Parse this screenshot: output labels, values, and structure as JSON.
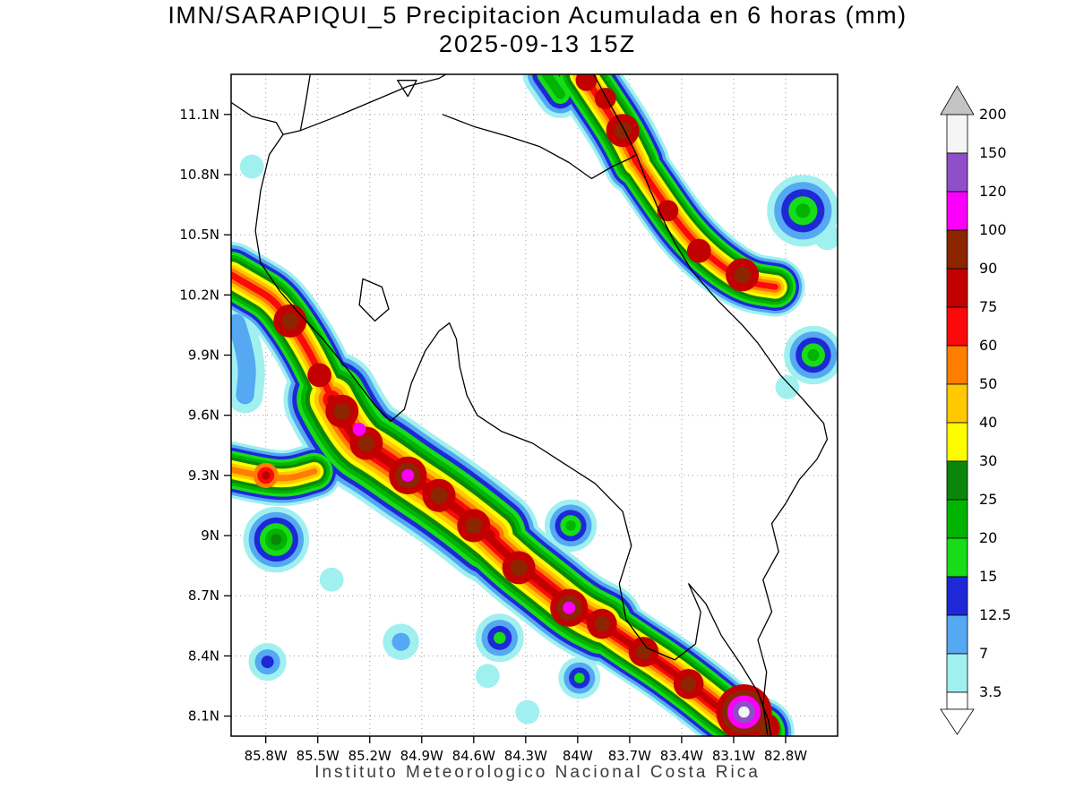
{
  "title": {
    "line1": "IMN/SARAPIQUI_5 Precipitacion Acumulada en 6 horas (mm)",
    "line2": "2025-09-13 15Z"
  },
  "footer": "Instituto Meteorologico Nacional Costa Rica",
  "axes": {
    "lat_ticks": [
      {
        "value": 11.1,
        "label": "11.1N"
      },
      {
        "value": 10.8,
        "label": "10.8N"
      },
      {
        "value": 10.5,
        "label": "10.5N"
      },
      {
        "value": 10.2,
        "label": "10.2N"
      },
      {
        "value": 9.9,
        "label": "9.9N"
      },
      {
        "value": 9.6,
        "label": "9.6N"
      },
      {
        "value": 9.3,
        "label": "9.3N"
      },
      {
        "value": 9.0,
        "label": "9N"
      },
      {
        "value": 8.7,
        "label": "8.7N"
      },
      {
        "value": 8.4,
        "label": "8.4N"
      },
      {
        "value": 8.1,
        "label": "8.1N"
      }
    ],
    "lon_ticks": [
      {
        "value": 85.8,
        "label": "85.8W"
      },
      {
        "value": 85.5,
        "label": "85.5W"
      },
      {
        "value": 85.2,
        "label": "85.2W"
      },
      {
        "value": 84.9,
        "label": "84.9W"
      },
      {
        "value": 84.6,
        "label": "84.6W"
      },
      {
        "value": 84.3,
        "label": "84.3W"
      },
      {
        "value": 84.0,
        "label": "84W"
      },
      {
        "value": 83.7,
        "label": "83.7W"
      },
      {
        "value": 83.4,
        "label": "83.4W"
      },
      {
        "value": 83.1,
        "label": "83.1W"
      },
      {
        "value": 82.8,
        "label": "82.8W"
      }
    ],
    "lon_range_w": [
      86.0,
      82.5
    ],
    "lat_range": [
      11.3,
      8.0
    ],
    "grid_style": "dotted"
  },
  "colorbar": {
    "labels": [
      "200",
      "150",
      "120",
      "100",
      "90",
      "75",
      "60",
      "50",
      "40",
      "30",
      "25",
      "20",
      "15",
      "12.5",
      "7",
      "3.5"
    ],
    "segment_colors": [
      "#f5f5f5",
      "#8f4fc8",
      "#fa00fa",
      "#8c2600",
      "#c30000",
      "#fa0a0a",
      "#ff7d00",
      "#ffc800",
      "#fdfd00",
      "#0a870a",
      "#00b400",
      "#17dc17",
      "#1e28d7",
      "#55a8f2",
      "#a0f0f0",
      "#ffffff"
    ],
    "top_arrow_color": "#c4c4c4",
    "bottom_arrow_color": "#ffffff"
  },
  "chart_data": {
    "type": "heatmap",
    "model": "IMN/SARAPIQUI_5",
    "variable": "Precipitacion Acumulada en 6 horas",
    "units": "mm",
    "valid_time": "2025-09-13 15Z",
    "levels": [
      3.5,
      7,
      12.5,
      15,
      20,
      25,
      30,
      40,
      50,
      60,
      75,
      90,
      100,
      120,
      150
    ],
    "level_colors": [
      "#a0f0f0",
      "#55a8f2",
      "#1e28d7",
      "#17dc17",
      "#00b400",
      "#0a870a",
      "#fdfd00",
      "#ffc800",
      "#ff7d00",
      "#fa0a0a",
      "#c30000",
      "#8c2600",
      "#fa00fa",
      "#8f4fc8",
      "#f5f5f5"
    ],
    "bands": [
      {
        "spine": [
          [
            86.0,
            10.3
          ],
          [
            85.88,
            10.24
          ],
          [
            85.76,
            10.18
          ],
          [
            85.66,
            10.07
          ],
          [
            85.55,
            9.92
          ],
          [
            85.46,
            9.76
          ],
          [
            85.36,
            9.58
          ]
        ],
        "max": 75,
        "width": 0.4
      },
      {
        "spine": [
          [
            85.42,
            9.68
          ],
          [
            85.3,
            9.48
          ],
          [
            85.14,
            9.4
          ],
          [
            84.98,
            9.3
          ],
          [
            84.82,
            9.21
          ],
          [
            84.66,
            9.11
          ],
          [
            84.5,
            9.0
          ]
        ],
        "max": 90,
        "width": 0.58
      },
      {
        "spine": [
          [
            84.56,
            9.03
          ],
          [
            84.38,
            8.88
          ],
          [
            84.2,
            8.76
          ],
          [
            84.0,
            8.62
          ],
          [
            83.86,
            8.56
          ]
        ],
        "max": 90,
        "width": 0.5
      },
      {
        "spine": [
          [
            83.9,
            8.58
          ],
          [
            83.7,
            8.46
          ],
          [
            83.5,
            8.35
          ],
          [
            83.3,
            8.22
          ],
          [
            83.1,
            8.08
          ],
          [
            82.95,
            8.02
          ]
        ],
        "max": 90,
        "width": 0.42
      },
      {
        "spine": [
          [
            86.0,
            9.33
          ],
          [
            85.85,
            9.3
          ],
          [
            85.68,
            9.28
          ],
          [
            85.52,
            9.32
          ]
        ],
        "max": 60,
        "width": 0.34
      },
      {
        "spine": [
          [
            85.97,
            10.06
          ],
          [
            85.9,
            9.88
          ],
          [
            85.92,
            9.7
          ]
        ],
        "max": 12.5,
        "width": 0.26
      },
      {
        "spine": [
          [
            83.97,
            11.3
          ],
          [
            83.86,
            11.16
          ],
          [
            83.74,
            11.0
          ],
          [
            83.66,
            10.86
          ]
        ],
        "max": 75,
        "width": 0.4
      },
      {
        "spine": [
          [
            83.66,
            10.86
          ],
          [
            83.52,
            10.68
          ],
          [
            83.37,
            10.5
          ],
          [
            83.2,
            10.36
          ],
          [
            83.02,
            10.26
          ],
          [
            82.86,
            10.24
          ]
        ],
        "max": 75,
        "width": 0.36
      },
      {
        "spine": [
          [
            84.18,
            11.3
          ],
          [
            84.1,
            11.2
          ]
        ],
        "max": 25,
        "width": 0.3
      }
    ],
    "cells": [
      {
        "lon": 85.66,
        "lat": 10.07,
        "min": 75,
        "max": 100,
        "r": 0.11
      },
      {
        "lon": 85.49,
        "lat": 9.8,
        "min": 75,
        "max": 90,
        "r": 0.09
      },
      {
        "lon": 85.36,
        "lat": 9.62,
        "min": 75,
        "max": 100,
        "r": 0.11
      },
      {
        "lon": 85.22,
        "lat": 9.46,
        "min": 75,
        "max": 100,
        "r": 0.11
      },
      {
        "lon": 85.26,
        "lat": 9.53,
        "min": 100,
        "max": 120,
        "r": 0.05
      },
      {
        "lon": 84.98,
        "lat": 9.3,
        "min": 75,
        "max": 120,
        "r": 0.12
      },
      {
        "lon": 84.8,
        "lat": 9.2,
        "min": 75,
        "max": 100,
        "r": 0.11
      },
      {
        "lon": 84.6,
        "lat": 9.05,
        "min": 75,
        "max": 100,
        "r": 0.11
      },
      {
        "lon": 84.34,
        "lat": 8.84,
        "min": 75,
        "max": 100,
        "r": 0.11
      },
      {
        "lon": 84.05,
        "lat": 8.64,
        "min": 75,
        "max": 120,
        "r": 0.12
      },
      {
        "lon": 83.86,
        "lat": 8.56,
        "min": 75,
        "max": 100,
        "r": 0.1
      },
      {
        "lon": 83.62,
        "lat": 8.42,
        "min": 75,
        "max": 100,
        "r": 0.1
      },
      {
        "lon": 83.36,
        "lat": 8.26,
        "min": 75,
        "max": 100,
        "r": 0.1
      },
      {
        "lon": 83.04,
        "lat": 8.12,
        "min": 75,
        "max": 200,
        "r": 0.17
      },
      {
        "lon": 82.92,
        "lat": 8.04,
        "min": 75,
        "max": 100,
        "r": 0.1
      },
      {
        "lon": 83.74,
        "lat": 11.02,
        "min": 75,
        "max": 100,
        "r": 0.11
      },
      {
        "lon": 83.84,
        "lat": 11.18,
        "min": 75,
        "max": 90,
        "r": 0.08
      },
      {
        "lon": 83.95,
        "lat": 11.27,
        "min": 75,
        "max": 90,
        "r": 0.08
      },
      {
        "lon": 83.48,
        "lat": 10.62,
        "min": 75,
        "max": 90,
        "r": 0.08
      },
      {
        "lon": 83.3,
        "lat": 10.42,
        "min": 75,
        "max": 90,
        "r": 0.09
      },
      {
        "lon": 83.05,
        "lat": 10.3,
        "min": 75,
        "max": 100,
        "r": 0.11
      },
      {
        "lon": 85.8,
        "lat": 9.3,
        "min": 50,
        "max": 90,
        "r": 0.08
      },
      {
        "lon": 82.7,
        "lat": 10.62,
        "min": 3.5,
        "max": 25,
        "r": 0.22
      },
      {
        "lon": 82.56,
        "lat": 10.49,
        "min": 3.5,
        "max": 7,
        "r": 0.1
      },
      {
        "lon": 82.64,
        "lat": 9.9,
        "min": 3.5,
        "max": 25,
        "r": 0.18
      },
      {
        "lon": 82.79,
        "lat": 9.74,
        "min": 3.5,
        "max": 7,
        "r": 0.09
      },
      {
        "lon": 85.74,
        "lat": 8.98,
        "min": 3.5,
        "max": 30,
        "r": 0.2
      },
      {
        "lon": 85.42,
        "lat": 8.78,
        "min": 3.5,
        "max": 7,
        "r": 0.09
      },
      {
        "lon": 85.79,
        "lat": 8.37,
        "min": 3.5,
        "max": 15,
        "r": 0.12
      },
      {
        "lon": 85.02,
        "lat": 8.47,
        "min": 3.5,
        "max": 12.5,
        "r": 0.12
      },
      {
        "lon": 84.45,
        "lat": 8.49,
        "min": 3.5,
        "max": 20,
        "r": 0.15
      },
      {
        "lon": 84.04,
        "lat": 9.05,
        "min": 3.5,
        "max": 25,
        "r": 0.16
      },
      {
        "lon": 83.99,
        "lat": 8.29,
        "min": 3.5,
        "max": 20,
        "r": 0.13
      },
      {
        "lon": 84.29,
        "lat": 8.12,
        "min": 3.5,
        "max": 7,
        "r": 0.09
      },
      {
        "lon": 85.88,
        "lat": 10.84,
        "min": 3.5,
        "max": 7,
        "r": 0.09
      },
      {
        "lon": 84.52,
        "lat": 8.3,
        "min": 3.5,
        "max": 7,
        "r": 0.09
      }
    ],
    "coastlines": [
      {
        "name": "pacific-coast",
        "closed": false,
        "points": [
          [
            86.0,
            11.16
          ],
          [
            85.88,
            11.09
          ],
          [
            85.74,
            11.06
          ],
          [
            85.7,
            11.0
          ],
          [
            85.78,
            10.9
          ],
          [
            85.83,
            10.72
          ],
          [
            85.86,
            10.52
          ],
          [
            85.83,
            10.36
          ],
          [
            85.72,
            10.22
          ],
          [
            85.6,
            10.1
          ],
          [
            85.47,
            9.98
          ],
          [
            85.32,
            9.82
          ],
          [
            85.17,
            9.65
          ],
          [
            85.08,
            9.57
          ],
          [
            85.0,
            9.63
          ],
          [
            84.96,
            9.76
          ],
          [
            84.88,
            9.92
          ],
          [
            84.8,
            10.02
          ],
          [
            84.74,
            10.06
          ],
          [
            84.7,
            9.98
          ],
          [
            84.68,
            9.84
          ],
          [
            84.64,
            9.7
          ],
          [
            84.58,
            9.6
          ],
          [
            84.44,
            9.52
          ],
          [
            84.26,
            9.46
          ],
          [
            84.08,
            9.36
          ],
          [
            83.9,
            9.26
          ],
          [
            83.74,
            9.12
          ],
          [
            83.69,
            8.95
          ],
          [
            83.76,
            8.76
          ],
          [
            83.72,
            8.58
          ],
          [
            83.6,
            8.44
          ],
          [
            83.44,
            8.38
          ],
          [
            83.32,
            8.46
          ],
          [
            83.29,
            8.62
          ],
          [
            83.36,
            8.76
          ],
          [
            83.26,
            8.66
          ],
          [
            83.17,
            8.5
          ],
          [
            83.06,
            8.36
          ],
          [
            82.96,
            8.22
          ],
          [
            82.9,
            8.08
          ],
          [
            82.88,
            7.98
          ]
        ]
      },
      {
        "name": "caribbean-coast-panama-border",
        "closed": false,
        "points": [
          [
            83.92,
            11.32
          ],
          [
            83.82,
            11.16
          ],
          [
            83.73,
            11.02
          ],
          [
            83.66,
            10.9
          ],
          [
            83.6,
            10.76
          ],
          [
            83.52,
            10.6
          ],
          [
            83.44,
            10.46
          ],
          [
            83.34,
            10.32
          ],
          [
            83.2,
            10.18
          ],
          [
            83.05,
            10.05
          ],
          [
            82.96,
            9.96
          ],
          [
            82.83,
            9.8
          ],
          [
            82.7,
            9.68
          ],
          [
            82.58,
            9.56
          ],
          [
            82.56,
            9.48
          ],
          [
            82.62,
            9.38
          ],
          [
            82.72,
            9.28
          ],
          [
            82.8,
            9.16
          ],
          [
            82.88,
            9.06
          ],
          [
            82.84,
            8.92
          ],
          [
            82.93,
            8.78
          ],
          [
            82.88,
            8.62
          ],
          [
            82.96,
            8.48
          ],
          [
            82.91,
            8.32
          ],
          [
            82.93,
            8.16
          ],
          [
            82.9,
            7.98
          ]
        ]
      },
      {
        "name": "nicaragua-border",
        "closed": false,
        "points": [
          [
            84.78,
            11.1
          ],
          [
            84.6,
            11.04
          ],
          [
            84.4,
            10.99
          ],
          [
            84.22,
            10.94
          ],
          [
            84.05,
            10.86
          ],
          [
            83.92,
            10.78
          ],
          [
            83.8,
            10.84
          ],
          [
            83.7,
            10.88
          ],
          [
            83.66,
            10.9
          ]
        ]
      },
      {
        "name": "lake-nicaragua-west-shore",
        "closed": false,
        "points": [
          [
            85.54,
            11.32
          ],
          [
            85.57,
            11.16
          ],
          [
            85.6,
            11.02
          ],
          [
            85.7,
            11.0
          ]
        ]
      },
      {
        "name": "lake-nicaragua-se-shore",
        "closed": false,
        "points": [
          [
            85.6,
            11.02
          ],
          [
            85.42,
            11.08
          ],
          [
            85.2,
            11.16
          ],
          [
            84.98,
            11.24
          ],
          [
            84.8,
            11.28
          ],
          [
            84.72,
            11.32
          ]
        ]
      },
      {
        "name": "ometepe-island",
        "closed": true,
        "points": [
          [
            85.04,
            11.27
          ],
          [
            84.98,
            11.19
          ],
          [
            84.93,
            11.27
          ]
        ]
      },
      {
        "name": "chira-island",
        "closed": true,
        "points": [
          [
            85.24,
            10.28
          ],
          [
            85.13,
            10.24
          ],
          [
            85.09,
            10.13
          ],
          [
            85.17,
            10.07
          ],
          [
            85.26,
            10.15
          ]
        ]
      }
    ]
  }
}
